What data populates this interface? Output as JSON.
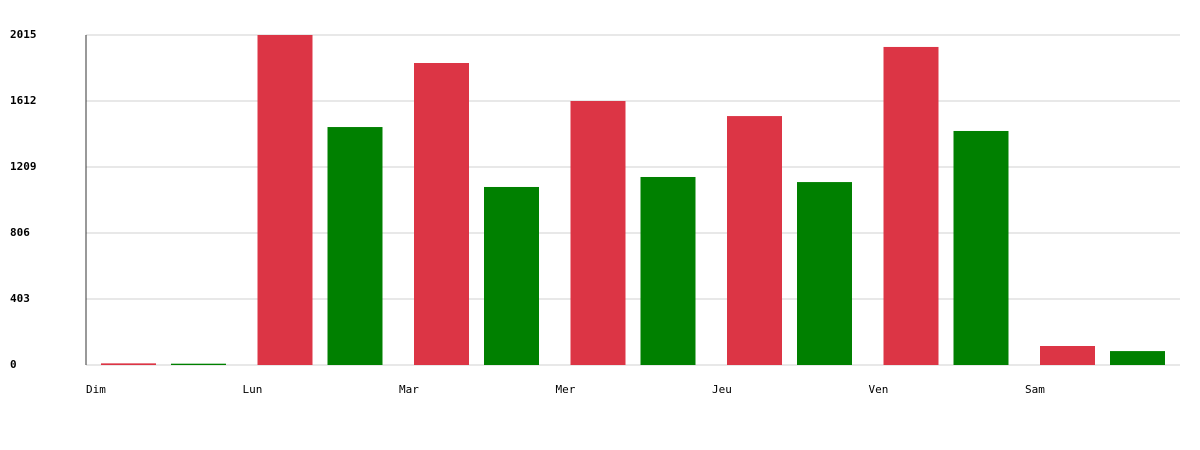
{
  "chart_data": {
    "type": "bar",
    "categories": [
      "Dim",
      "Lun",
      "Mar",
      "Mer",
      "Jeu",
      "Ven",
      "Sam"
    ],
    "series": [
      {
        "color": "#dc3545",
        "values": [
          10,
          2015,
          1844,
          1612,
          1520,
          1942,
          116
        ]
      },
      {
        "color": "#008000",
        "values": [
          8,
          1453,
          1087,
          1148,
          1117,
          1429,
          85
        ]
      }
    ],
    "ylim": [
      0,
      2015
    ],
    "yticks": [
      0,
      403,
      806,
      1209,
      1612,
      2015
    ],
    "grid": true
  }
}
